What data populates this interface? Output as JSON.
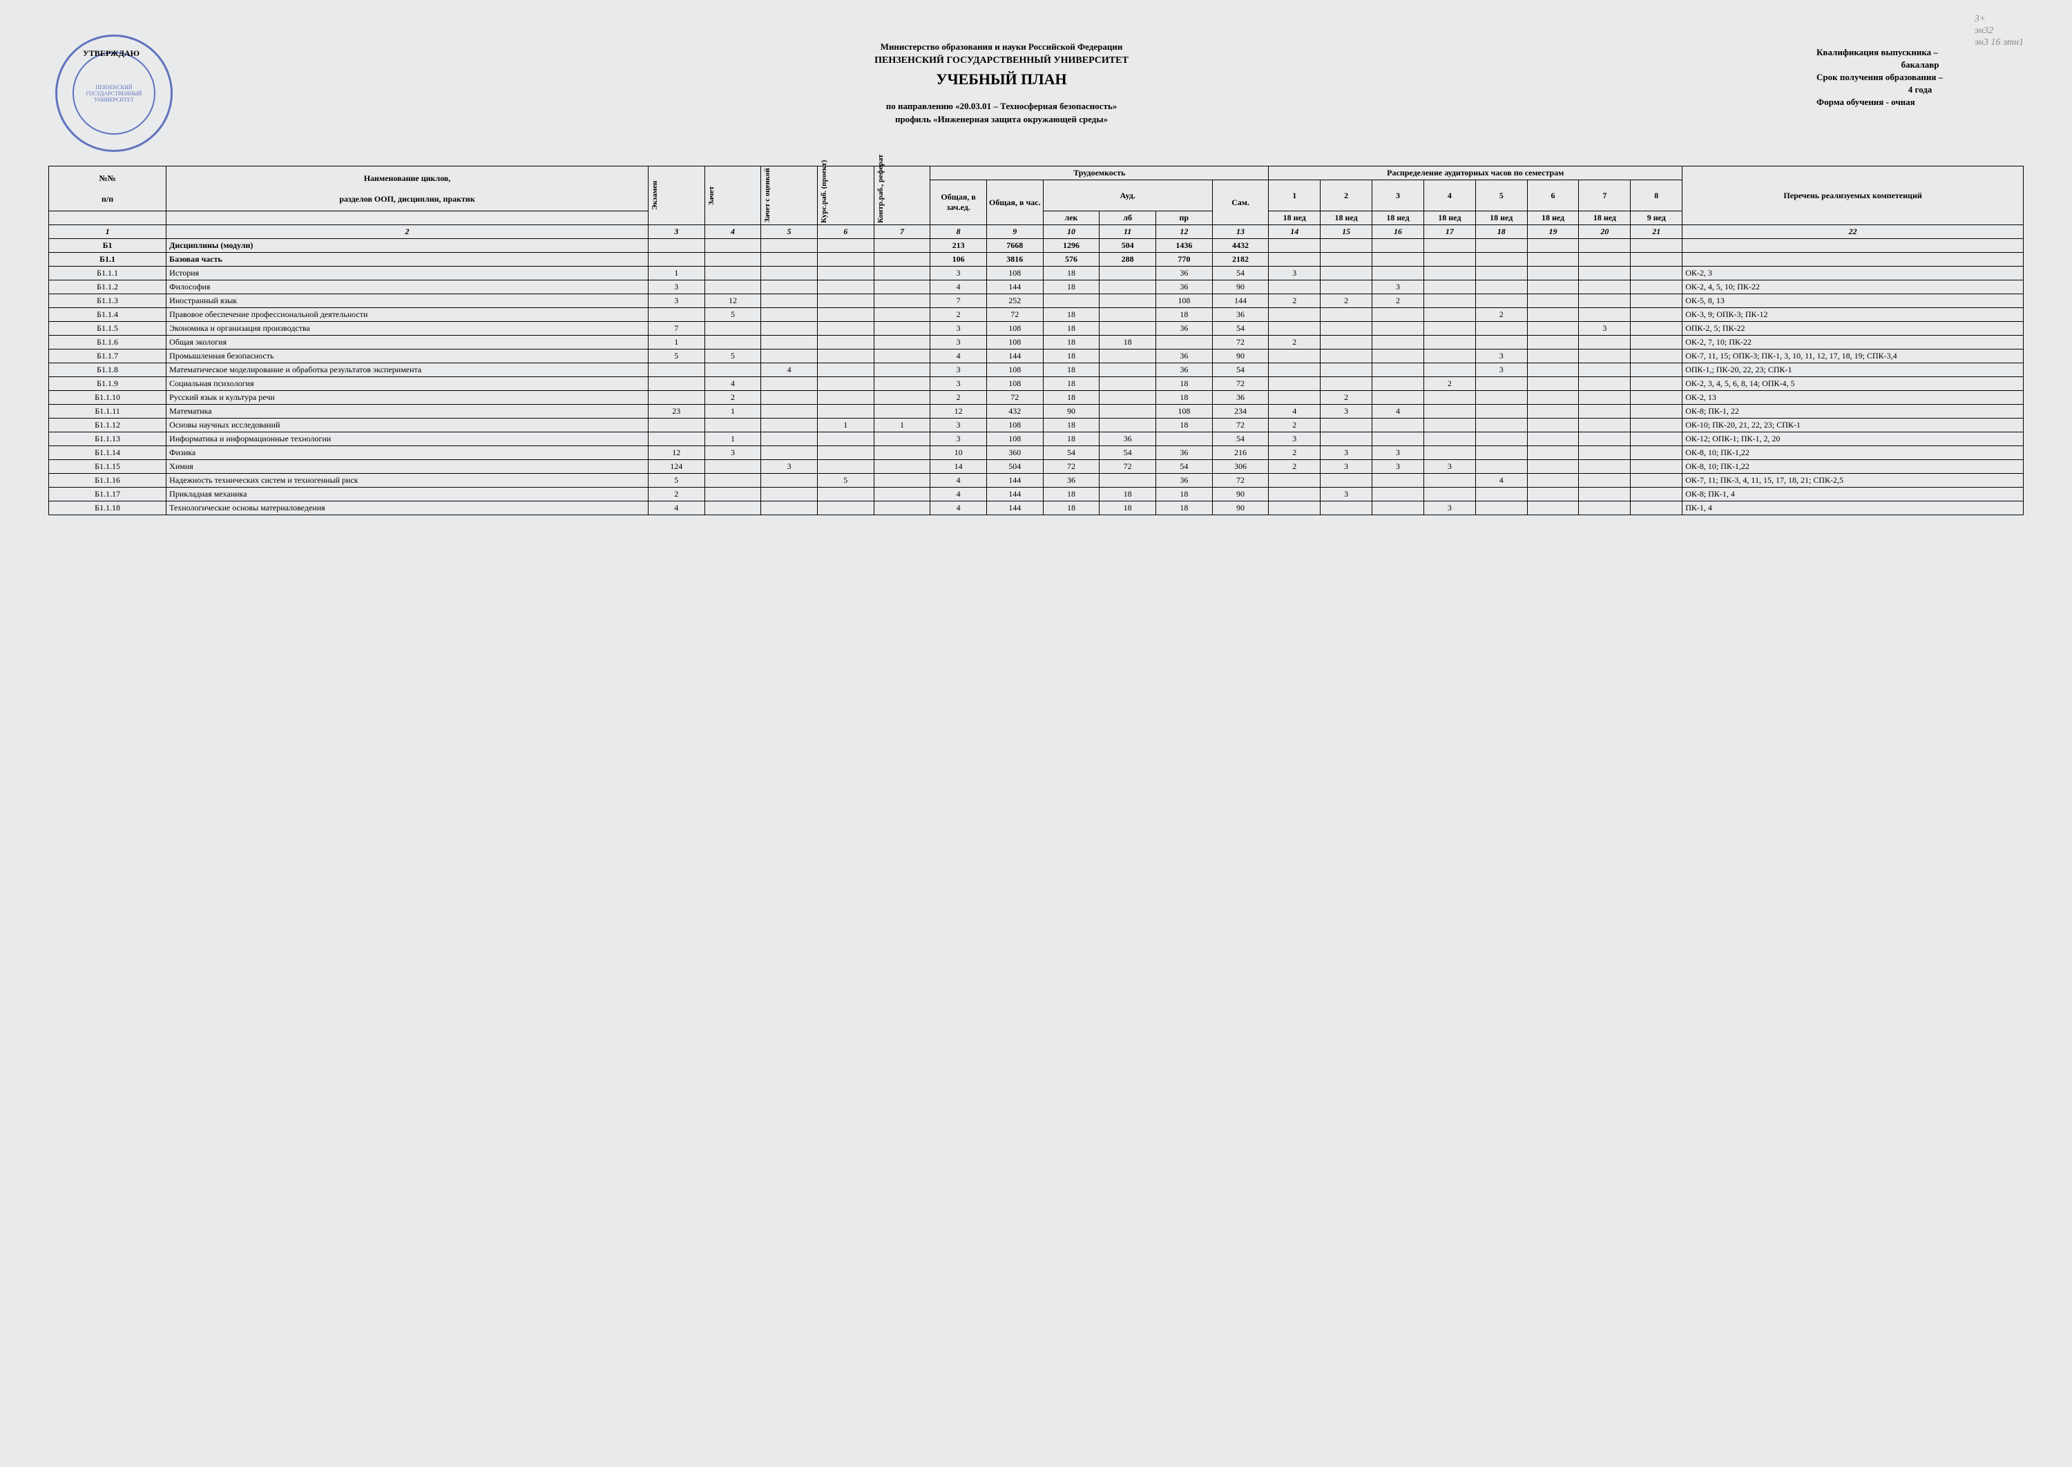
{
  "handwritten": {
    "l1": "3+",
    "l2": "эн32",
    "l3": "эн3 16 этн1"
  },
  "seal": {
    "approve": "УТВЕРЖДАЮ",
    "inner": "ПЕНЗЕНСКИЙ ГОСУДАРСТВЕННЫЙ УНИВЕРСИТЕТ"
  },
  "header": {
    "ministry": "Министерство образования и науки Российской Федерации",
    "university": "ПЕНЗЕНСКИЙ ГОСУДАРСТВЕННЫЙ УНИВЕРСИТЕТ",
    "title": "УЧЕБНЫЙ ПЛАН",
    "direction1": "по направлению «20.03.01 – Техносферная безопасность»",
    "direction2": "профиль «Инженерная защита окружающей среды»"
  },
  "info": {
    "qual": "Квалификация выпускника –",
    "qual_val": "бакалавр",
    "term": "Срок получения образования –",
    "term_val": "4 года",
    "form": "Форма обучения - очная"
  },
  "cols": {
    "num": "№№",
    "pp": "п/п",
    "name": "Наименование циклов,",
    "name2": "разделов ООП, дисциплин, практик",
    "exam": "Экзамен",
    "zachet": "Зачет",
    "zachet_o": "Зачет с оценкой",
    "kurs": "Курс.раб. (проект)",
    "kontr": "Контр.раб., реферат",
    "trud": "Трудоемкость",
    "ob_ze": "Общая, в зач.ед.",
    "ob_ch": "Общая, в час.",
    "aud": "Ауд.",
    "lek": "лек",
    "lb": "лб",
    "pr": "пр",
    "sam": "Сам.",
    "raspr": "Распределение аудиторных часов по семестрам",
    "s1": "1",
    "s2": "2",
    "s3": "3",
    "s4": "4",
    "s5": "5",
    "s6": "6",
    "s7": "7",
    "s8": "8",
    "w18": "18 нед",
    "w9": "9 нед",
    "comp": "Перечень реализуемых компетенций",
    "hnum": {
      "c1": "1",
      "c2": "2",
      "c3": "3",
      "c4": "4",
      "c5": "5",
      "c6": "6",
      "c7": "7",
      "c8": "8",
      "c9": "9",
      "c10": "10",
      "c11": "11",
      "c12": "12",
      "c13": "13",
      "c14": "14",
      "c15": "15",
      "c16": "16",
      "c17": "17",
      "c18": "18",
      "c19": "19",
      "c20": "20",
      "c21": "21",
      "c22": "22"
    }
  },
  "rows": [
    {
      "n": "Б1",
      "name": "Дисциплины (модули)",
      "v": [
        "",
        "",
        "",
        "",
        "",
        "213",
        "7668",
        "1296",
        "504",
        "1436",
        "4432",
        "",
        "",
        "",
        "",
        "",
        "",
        "",
        "",
        ""
      ],
      "bold": true
    },
    {
      "n": "Б1.1",
      "name": "Базовая часть",
      "v": [
        "",
        "",
        "",
        "",
        "",
        "106",
        "3816",
        "576",
        "288",
        "770",
        "2182",
        "",
        "",
        "",
        "",
        "",
        "",
        "",
        "",
        ""
      ],
      "bold": true
    },
    {
      "n": "Б1.1.1",
      "name": "История",
      "v": [
        "1",
        "",
        "",
        "",
        "",
        "3",
        "108",
        "18",
        "",
        "36",
        "54",
        "3",
        "",
        "",
        "",
        "",
        "",
        "",
        "",
        "ОК-2, 3"
      ]
    },
    {
      "n": "Б1.1.2",
      "name": "Философия",
      "v": [
        "3",
        "",
        "",
        "",
        "",
        "4",
        "144",
        "18",
        "",
        "36",
        "90",
        "",
        "",
        "3",
        "",
        "",
        "",
        "",
        "",
        "ОК-2, 4, 5, 10; ПК-22"
      ]
    },
    {
      "n": "Б1.1.3",
      "name": "Иностранный язык",
      "v": [
        "3",
        "12",
        "",
        "",
        "",
        "7",
        "252",
        "",
        "",
        "108",
        "144",
        "2",
        "2",
        "2",
        "",
        "",
        "",
        "",
        "",
        "ОК-5, 8, 13"
      ]
    },
    {
      "n": "Б1.1.4",
      "name": "Правовое обеспечение профессиональной деятельности",
      "v": [
        "",
        "5",
        "",
        "",
        "",
        "2",
        "72",
        "18",
        "",
        "18",
        "36",
        "",
        "",
        "",
        "",
        "2",
        "",
        "",
        "",
        "ОК-3, 9; ОПК-3; ПК-12"
      ]
    },
    {
      "n": "Б1.1.5",
      "name": "Экономика и организация производства",
      "v": [
        "7",
        "",
        "",
        "",
        "",
        "3",
        "108",
        "18",
        "",
        "36",
        "54",
        "",
        "",
        "",
        "",
        "",
        "",
        "3",
        "",
        "ОПК-2, 5; ПК-22"
      ]
    },
    {
      "n": "Б1.1.6",
      "name": "Общая экология",
      "v": [
        "1",
        "",
        "",
        "",
        "",
        "3",
        "108",
        "18",
        "18",
        "",
        "72",
        "2",
        "",
        "",
        "",
        "",
        "",
        "",
        "",
        "ОК-2, 7, 10; ПК-22"
      ]
    },
    {
      "n": "Б1.1.7",
      "name": "Промышленная безопасность",
      "v": [
        "5",
        "5",
        "",
        "",
        "",
        "4",
        "144",
        "18",
        "",
        "36",
        "90",
        "",
        "",
        "",
        "",
        "3",
        "",
        "",
        "",
        "ОК-7, 11, 15; ОПК-3; ПК-1, 3, 10, 11, 12, 17, 18, 19; СПК-3,4"
      ]
    },
    {
      "n": "Б1.1.8",
      "name": "Математическое моделирование и обработка результатов эксперимента",
      "v": [
        "",
        "",
        "4",
        "",
        "",
        "3",
        "108",
        "18",
        "",
        "36",
        "54",
        "",
        "",
        "",
        "",
        "3",
        "",
        "",
        "",
        "ОПК-1,; ПК-20, 22, 23; СПК-1"
      ]
    },
    {
      "n": "Б1.1.9",
      "name": "Социальная психология",
      "v": [
        "",
        "4",
        "",
        "",
        "",
        "3",
        "108",
        "18",
        "",
        "18",
        "72",
        "",
        "",
        "",
        "2",
        "",
        "",
        "",
        "",
        "ОК-2, 3, 4, 5, 6, 8, 14; ОПК-4, 5"
      ]
    },
    {
      "n": "Б1.1.10",
      "name": "Русский язык и культура речи",
      "v": [
        "",
        "2",
        "",
        "",
        "",
        "2",
        "72",
        "18",
        "",
        "18",
        "36",
        "",
        "2",
        "",
        "",
        "",
        "",
        "",
        "",
        "ОК-2, 13"
      ]
    },
    {
      "n": "Б1.1.11",
      "name": "Математика",
      "v": [
        "23",
        "1",
        "",
        "",
        "",
        "12",
        "432",
        "90",
        "",
        "108",
        "234",
        "4",
        "3",
        "4",
        "",
        "",
        "",
        "",
        "",
        "ОК-8; ПК-1, 22"
      ]
    },
    {
      "n": "Б1.1.12",
      "name": "Основы научных исследований",
      "v": [
        "",
        "",
        "",
        "1",
        "1",
        "3",
        "108",
        "18",
        "",
        "18",
        "72",
        "2",
        "",
        "",
        "",
        "",
        "",
        "",
        "",
        "ОК-10; ПК-20, 21, 22, 23; СПК-1"
      ]
    },
    {
      "n": "Б1.1.13",
      "name": "Информатика и информационные технологии",
      "v": [
        "",
        "1",
        "",
        "",
        "",
        "3",
        "108",
        "18",
        "36",
        "",
        "54",
        "3",
        "",
        "",
        "",
        "",
        "",
        "",
        "",
        "ОК-12; ОПК-1; ПК-1, 2, 20"
      ]
    },
    {
      "n": "Б1.1.14",
      "name": "Физика",
      "v": [
        "12",
        "3",
        "",
        "",
        "",
        "10",
        "360",
        "54",
        "54",
        "36",
        "216",
        "2",
        "3",
        "3",
        "",
        "",
        "",
        "",
        "",
        "ОК-8, 10; ПК-1,22"
      ]
    },
    {
      "n": "Б1.1.15",
      "name": "Химия",
      "v": [
        "124",
        "",
        "3",
        "",
        "",
        "14",
        "504",
        "72",
        "72",
        "54",
        "306",
        "2",
        "3",
        "3",
        "3",
        "",
        "",
        "",
        "",
        "ОК-8, 10; ПК-1,22"
      ]
    },
    {
      "n": "Б1.1.16",
      "name": "Надежность технических систем и техногенный риск",
      "v": [
        "5",
        "",
        "",
        "5",
        "",
        "4",
        "144",
        "36",
        "",
        "36",
        "72",
        "",
        "",
        "",
        "",
        "4",
        "",
        "",
        "",
        "ОК-7, 11; ПК-3, 4, 11, 15, 17, 18, 21; СПК-2,5"
      ]
    },
    {
      "n": "Б1.1.17",
      "name": "Прикладная механика",
      "v": [
        "2",
        "",
        "",
        "",
        "",
        "4",
        "144",
        "18",
        "18",
        "18",
        "90",
        "",
        "3",
        "",
        "",
        "",
        "",
        "",
        "",
        "ОК-8; ПК-1, 4"
      ]
    },
    {
      "n": "Б1.1.18",
      "name": "Технологические основы материаловедения",
      "v": [
        "4",
        "",
        "",
        "",
        "",
        "4",
        "144",
        "18",
        "18",
        "18",
        "90",
        "",
        "",
        "",
        "3",
        "",
        "",
        "",
        "",
        "ПК-1, 4"
      ]
    }
  ],
  "style": {
    "background_color": "#e8eaec",
    "border_color": "#000000",
    "seal_color": "#4a5fb5",
    "font_family": "Times New Roman",
    "title_fontsize": 22,
    "body_fontsize": 12,
    "header_fontsize": 13
  }
}
